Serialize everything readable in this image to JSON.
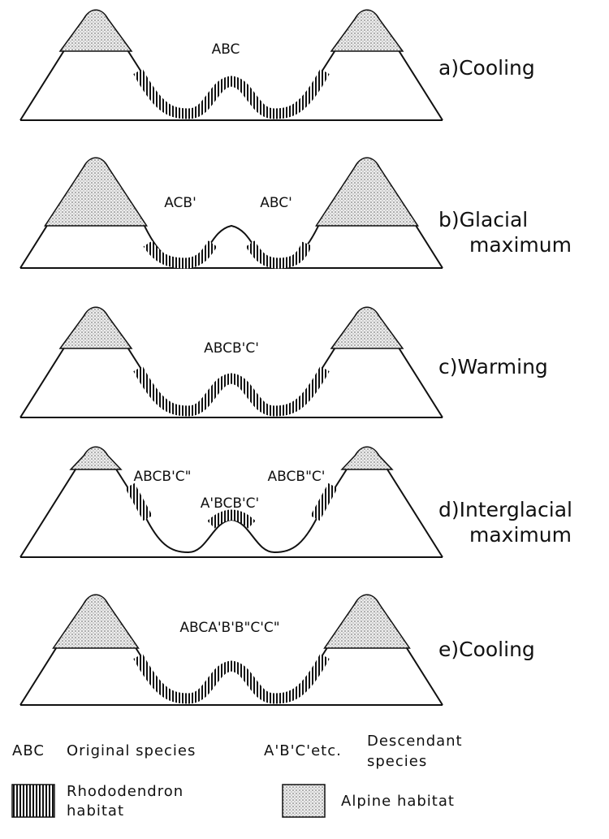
{
  "panels": [
    {
      "id": "a",
      "caption": [
        "a)Cooling"
      ],
      "species": [
        {
          "text": "ABC",
          "pos": "center"
        }
      ]
    },
    {
      "id": "b",
      "caption": [
        "b)Glacial",
        "maximum"
      ],
      "species": [
        {
          "text": "ACB'",
          "pos": "left"
        },
        {
          "text": "ABC'",
          "pos": "right"
        }
      ]
    },
    {
      "id": "c",
      "caption": [
        "c)Warming"
      ],
      "species": [
        {
          "text": "ABCB'C'",
          "pos": "center"
        }
      ]
    },
    {
      "id": "d",
      "caption": [
        "d)Interglacial",
        "maximum"
      ],
      "species": [
        {
          "text": "ABCB'C\"",
          "pos": "left"
        },
        {
          "text": "ABCB\"C'",
          "pos": "right"
        },
        {
          "text": "A'BCB'C'",
          "pos": "center"
        }
      ]
    },
    {
      "id": "e",
      "caption": [
        "e)Cooling"
      ],
      "species": [
        {
          "text": "ABCA'B'B\"C'C\"",
          "pos": "center"
        }
      ]
    }
  ],
  "legend": {
    "original_key": "ABC",
    "original_label": "Original species",
    "descendant_key": "A'B'C'etc.",
    "descendant_label": [
      "Descendant",
      "species"
    ],
    "rhododendron_label": [
      "Rhododendron",
      "habitat"
    ],
    "alpine_label": "Alpine habitat"
  }
}
